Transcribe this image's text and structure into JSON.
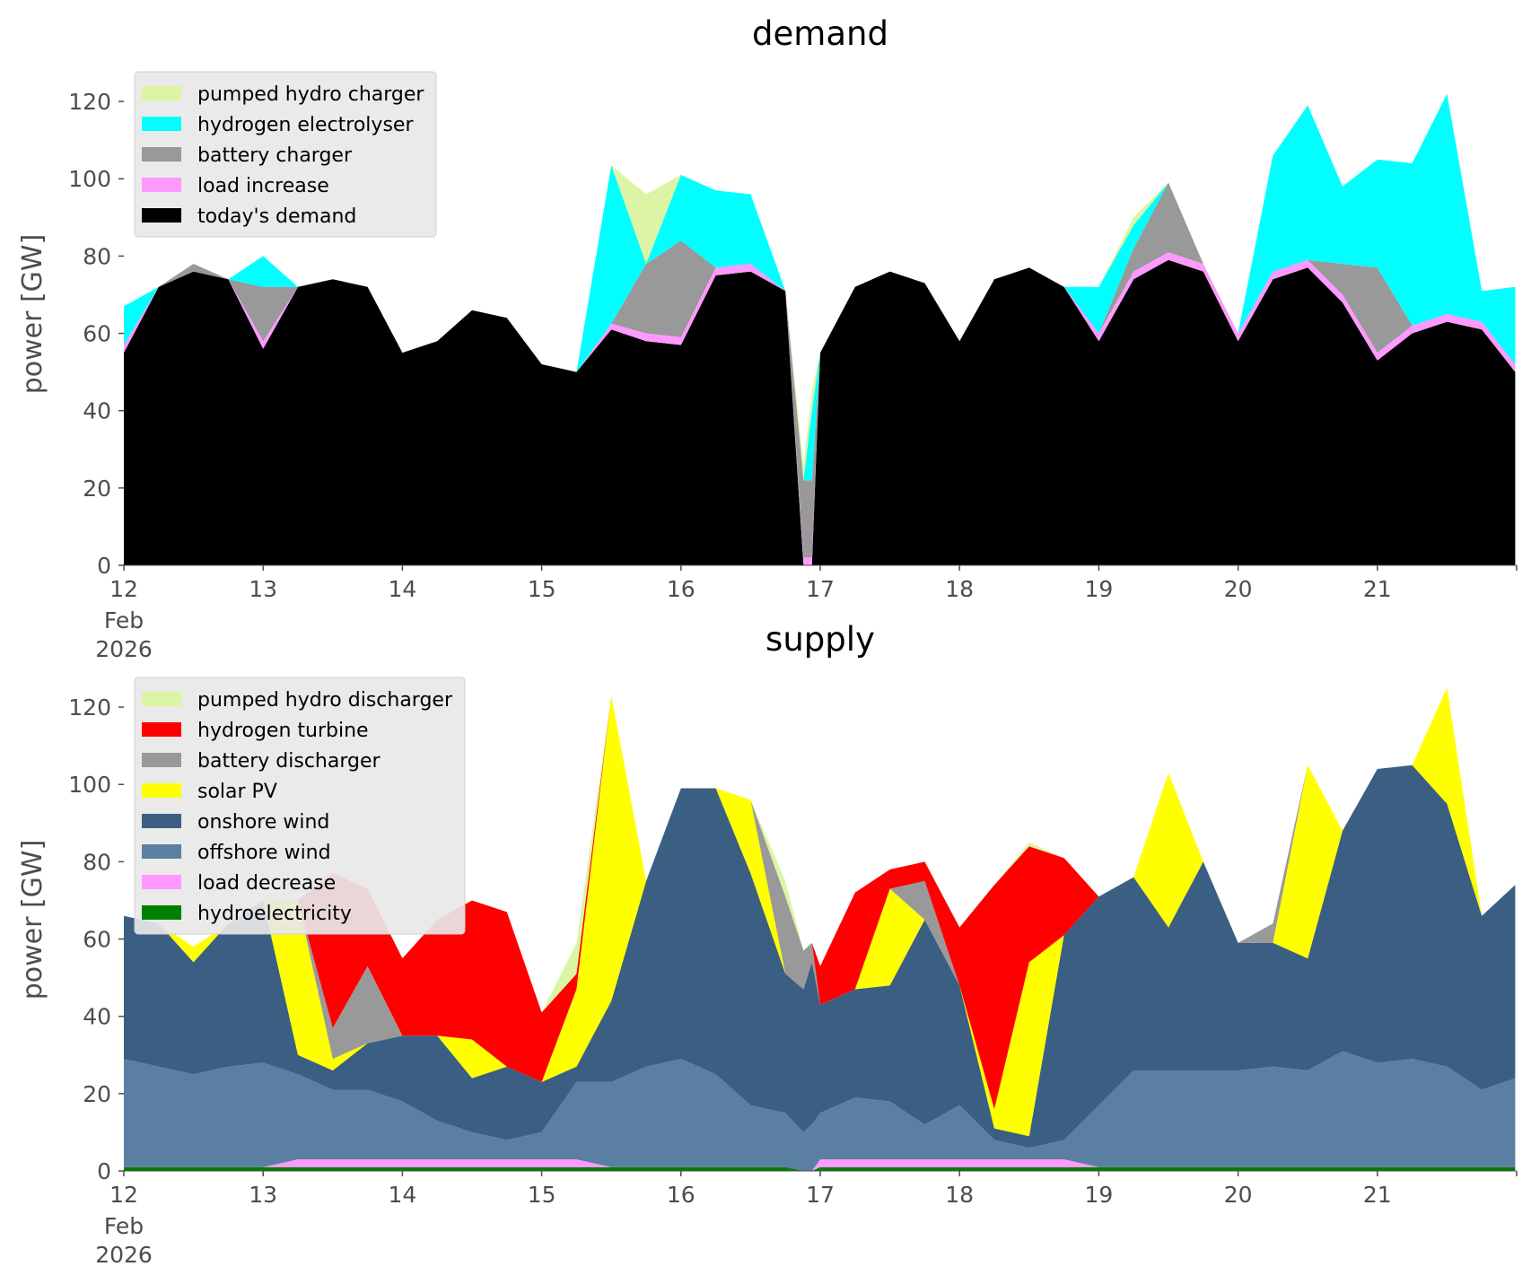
{
  "chart_data": [
    {
      "type": "area",
      "title": "demand",
      "xlabel": "",
      "ylabel": "power [GW]",
      "x_start": "2026-02-12",
      "x_ticks": [
        "12",
        "13",
        "14",
        "15",
        "16",
        "17",
        "18",
        "19",
        "20",
        "21"
      ],
      "x_tick_sub": [
        "Feb",
        "2026"
      ],
      "ylim": [
        0,
        130
      ],
      "y_ticks": [
        0,
        20,
        40,
        60,
        80,
        100,
        120
      ],
      "grid": false,
      "legend_position": "top-left",
      "legend_order": [
        "pumped hydro charger",
        "hydrogen electrolyser",
        "battery charger",
        "load increase",
        "today's demand"
      ],
      "x_days": [
        12,
        12.25,
        12.5,
        12.75,
        13,
        13.25,
        13.5,
        13.75,
        14,
        14.25,
        14.5,
        14.75,
        15,
        15.25,
        15.5,
        15.75,
        16,
        16.25,
        16.5,
        16.75,
        16.88,
        16.94,
        17,
        17.25,
        17.5,
        17.75,
        18,
        18.25,
        18.5,
        18.75,
        19,
        19.25,
        19.5,
        19.75,
        20,
        20.25,
        20.5,
        20.75,
        21,
        21.25,
        21.5,
        21.75,
        21.99
      ],
      "series": [
        {
          "name": "today's demand",
          "color": "#000000",
          "values": [
            55,
            72,
            76,
            74,
            56,
            72,
            74,
            72,
            55,
            58,
            66,
            64,
            52,
            50,
            61,
            58,
            57,
            75,
            76,
            71,
            0,
            0,
            55,
            72,
            76,
            73,
            58,
            74,
            77,
            72,
            58,
            74,
            79,
            76,
            58,
            74,
            77,
            68,
            53,
            60,
            63,
            61,
            50
          ]
        },
        {
          "name": "load increase",
          "color": "#ff99ff",
          "values": [
            2,
            0,
            0,
            0,
            2,
            0,
            0,
            0,
            0,
            0,
            0,
            0,
            0,
            0,
            1.5,
            2,
            2,
            2,
            2,
            0,
            2,
            2,
            0,
            0,
            0,
            0,
            0,
            0,
            0,
            0,
            2,
            2,
            2,
            2,
            2,
            2,
            2,
            2,
            2,
            2,
            2,
            2,
            2
          ]
        },
        {
          "name": "battery charger",
          "color": "#999999",
          "values": [
            0,
            0,
            2,
            0,
            14,
            0,
            0,
            0,
            0,
            0,
            0,
            0,
            0,
            0,
            0,
            18,
            25,
            0,
            0,
            0,
            20,
            20,
            0,
            0,
            0,
            0,
            0,
            0,
            0,
            0,
            0,
            6,
            18,
            0,
            0,
            0,
            0,
            8,
            22,
            0,
            0,
            0,
            0
          ]
        },
        {
          "name": "hydrogen electrolyser",
          "color": "#00ffff",
          "values": [
            10,
            0,
            0,
            0,
            8,
            0,
            0,
            0,
            0,
            0,
            0,
            0,
            0,
            0,
            41,
            0,
            17,
            20,
            18,
            0,
            0,
            18,
            0,
            0,
            0,
            0,
            0,
            0,
            0,
            0,
            12,
            6,
            0,
            0,
            0,
            30,
            40,
            20,
            28,
            42,
            57,
            8,
            20
          ]
        },
        {
          "name": "pumped hydro charger",
          "color": "#dcf5a5",
          "values": [
            0,
            0,
            0,
            0,
            0,
            0,
            0,
            0,
            0,
            0,
            0,
            0,
            0,
            0,
            0,
            18,
            0,
            0,
            0,
            0,
            4,
            5,
            0,
            0,
            0,
            0,
            0,
            0,
            0,
            0,
            0,
            2,
            0,
            0,
            0,
            0,
            0,
            0,
            0,
            0,
            0,
            0,
            0
          ]
        }
      ]
    },
    {
      "type": "area",
      "title": "supply",
      "xlabel": "",
      "ylabel": "power [GW]",
      "x_start": "2026-02-12",
      "x_ticks": [
        "12",
        "13",
        "14",
        "15",
        "16",
        "17",
        "18",
        "19",
        "20",
        "21"
      ],
      "x_tick_sub": [
        "Feb",
        "2026"
      ],
      "ylim": [
        0,
        130
      ],
      "y_ticks": [
        0,
        20,
        40,
        60,
        80,
        100,
        120
      ],
      "grid": false,
      "legend_position": "top-left",
      "legend_order": [
        "pumped hydro discharger",
        "hydrogen turbine",
        "battery discharger",
        "solar PV",
        "onshore wind",
        "offshore wind",
        "load decrease",
        "hydroelectricity"
      ],
      "x_days": [
        12,
        12.25,
        12.5,
        12.75,
        13,
        13.25,
        13.5,
        13.75,
        14,
        14.25,
        14.5,
        14.75,
        15,
        15.25,
        15.5,
        15.75,
        16,
        16.25,
        16.5,
        16.75,
        16.88,
        16.94,
        17,
        17.25,
        17.5,
        17.75,
        18,
        18.25,
        18.5,
        18.75,
        19,
        19.25,
        19.5,
        19.75,
        20,
        20.25,
        20.5,
        20.75,
        21,
        21.25,
        21.5,
        21.75,
        21.99
      ],
      "series": [
        {
          "name": "hydroelectricity",
          "color": "#008000",
          "values": [
            1,
            1,
            1,
            1,
            1,
            1,
            1,
            1,
            1,
            1,
            1,
            1,
            1,
            1,
            1,
            1,
            1,
            1,
            1,
            1,
            0,
            0,
            1,
            1,
            1,
            1,
            1,
            1,
            1,
            1,
            1,
            1,
            1,
            1,
            1,
            1,
            1,
            1,
            1,
            1,
            1,
            1,
            1
          ]
        },
        {
          "name": "load decrease",
          "color": "#ff99ff",
          "values": [
            0,
            0,
            0,
            0,
            0,
            2,
            2,
            2,
            2,
            2,
            2,
            2,
            2,
            2,
            0,
            0,
            0,
            0,
            0,
            0,
            0,
            0,
            2,
            2,
            2,
            2,
            2,
            2,
            2,
            2,
            0,
            0,
            0,
            0,
            0,
            0,
            0,
            0,
            0,
            0,
            0,
            0,
            0
          ]
        },
        {
          "name": "offshore wind",
          "color": "#5b7fa3",
          "values": [
            28,
            26,
            24,
            26,
            27,
            22,
            18,
            18,
            15,
            10,
            7,
            5,
            7,
            20,
            22,
            26,
            28,
            24,
            16,
            14,
            10,
            12,
            12,
            16,
            15,
            9,
            14,
            5,
            3,
            5,
            16,
            25,
            25,
            25,
            25,
            26,
            25,
            30,
            27,
            28,
            26,
            20,
            23
          ]
        },
        {
          "name": "onshore wind",
          "color": "#3a5f82",
          "values": [
            37,
            37,
            29,
            37,
            42,
            5,
            5,
            12,
            17,
            22,
            14,
            19,
            13,
            4,
            21,
            48,
            70,
            74,
            60,
            36,
            37,
            42,
            28,
            28,
            30,
            53,
            31,
            3,
            3,
            53,
            54,
            50,
            37,
            54,
            33,
            32,
            29,
            57,
            76,
            76,
            68,
            45,
            50
          ]
        },
        {
          "name": "solar PV",
          "color": "#ffff00",
          "values": [
            0,
            0,
            4,
            0,
            0,
            40,
            3,
            0,
            0,
            0,
            10,
            0,
            0,
            20,
            79,
            0,
            0,
            0,
            19,
            0,
            0,
            0,
            0,
            0,
            25,
            0,
            0,
            5,
            45,
            0,
            0,
            0,
            40,
            0,
            0,
            0,
            50,
            0,
            0,
            0,
            30,
            0,
            0
          ]
        },
        {
          "name": "battery discharger",
          "color": "#999999",
          "values": [
            0,
            0,
            0,
            0,
            0,
            0,
            8,
            20,
            0,
            0,
            0,
            0,
            0,
            0,
            0,
            0,
            0,
            0,
            0,
            20,
            10,
            5,
            0,
            0,
            0,
            10,
            0,
            0,
            0,
            0,
            0,
            0,
            0,
            0,
            0,
            5,
            0,
            0,
            0,
            0,
            0,
            0,
            0
          ]
        },
        {
          "name": "hydrogen turbine",
          "color": "#ff0000",
          "values": [
            0,
            0,
            0,
            0,
            0,
            0,
            40,
            20,
            20,
            30,
            36,
            40,
            18,
            4,
            0,
            0,
            0,
            0,
            0,
            0,
            0,
            0,
            10,
            25,
            5,
            5,
            15,
            58,
            30,
            20,
            0,
            0,
            0,
            0,
            0,
            0,
            0,
            0,
            0,
            0,
            0,
            0,
            0
          ]
        },
        {
          "name": "pumped hydro discharger",
          "color": "#dcf5a5",
          "values": [
            0,
            0,
            0,
            0,
            0,
            0,
            0,
            0,
            0,
            0,
            0,
            0,
            0,
            8,
            0,
            0,
            0,
            0,
            0,
            4,
            0,
            0,
            0,
            0,
            0,
            0,
            0,
            0,
            1,
            0,
            0,
            0,
            0,
            0,
            0,
            0,
            0,
            0,
            0,
            0,
            0,
            0,
            0
          ]
        }
      ]
    }
  ]
}
